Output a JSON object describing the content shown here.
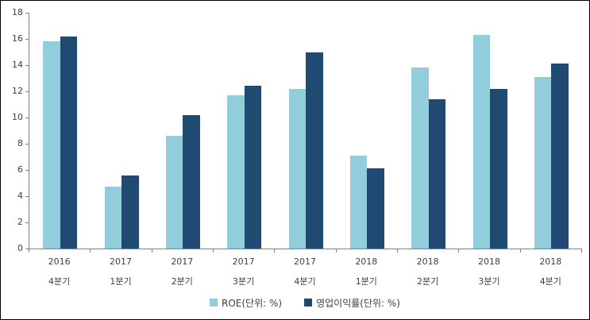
{
  "chart_data": {
    "type": "bar",
    "title": "",
    "categories": [
      [
        "2016",
        "4분기"
      ],
      [
        "2017",
        "1분기"
      ],
      [
        "2017",
        "2분기"
      ],
      [
        "2017",
        "3분기"
      ],
      [
        "2017",
        "4분기"
      ],
      [
        "2018",
        "1분기"
      ],
      [
        "2018",
        "2분기"
      ],
      [
        "2018",
        "3분기"
      ],
      [
        "2018",
        "4분기"
      ]
    ],
    "series": [
      {
        "name": "ROE(단위: %)",
        "color": "#92CDDC",
        "values": [
          15.8,
          4.7,
          8.6,
          11.7,
          12.2,
          7.1,
          13.8,
          16.3,
          13.1
        ]
      },
      {
        "name": "영업이익률(단위: %)",
        "color": "#204A72",
        "values": [
          16.2,
          5.6,
          10.2,
          12.4,
          15.0,
          6.1,
          11.4,
          12.2,
          14.1
        ]
      }
    ],
    "ylim": [
      0,
      18
    ],
    "ytick_step": 2,
    "xlabel": "",
    "ylabel": "",
    "grid": false,
    "legend_position": "bottom",
    "axis_color": "#808080",
    "label_color": "#404040"
  }
}
